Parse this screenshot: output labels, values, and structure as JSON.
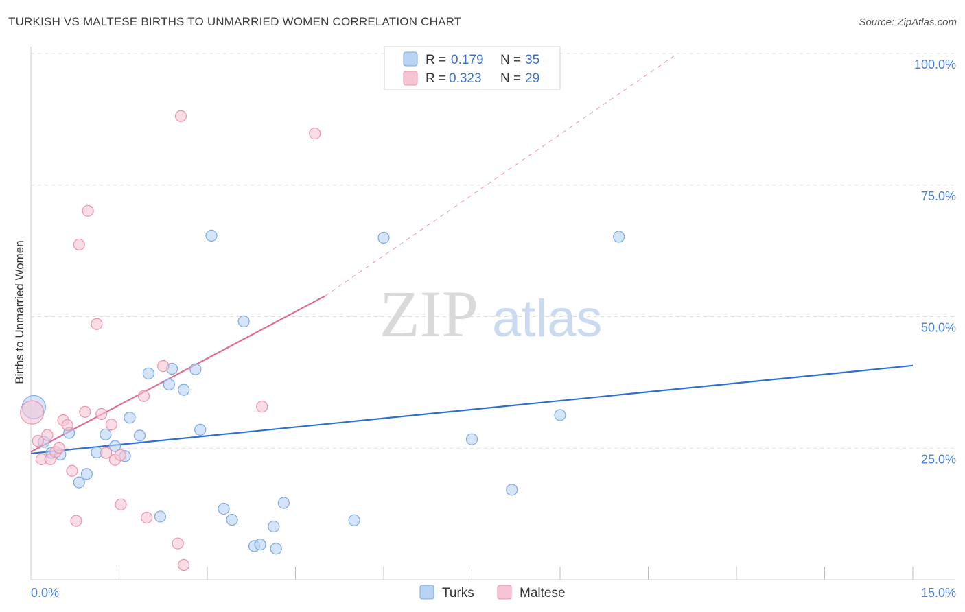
{
  "title": "TURKISH VS MALTESE BIRTHS TO UNMARRIED WOMEN CORRELATION CHART",
  "source": "Source: ZipAtlas.com",
  "watermark": {
    "zip": "ZIP",
    "atlas": "atlas"
  },
  "legend": {
    "r_label": "R =",
    "n_label": "N =",
    "rows": [
      {
        "r": "0.179",
        "n": "35"
      },
      {
        "r": "0.323",
        "n": "29"
      }
    ]
  },
  "colors": {
    "turks_fill": "#b9d3f5",
    "turks_stroke": "#7aa8e4",
    "turks_line": "#2a6fd1",
    "maltese_fill": "#f7c4d3",
    "maltese_stroke": "#ec92ad",
    "maltese_line": "#e06a95",
    "grid": "#dddddd",
    "axis_text": "#4a7fd4"
  },
  "chart_data": {
    "type": "scatter",
    "title": "TURKISH VS MALTESE BIRTHS TO UNMARRIED WOMEN CORRELATION CHART",
    "xlabel": "",
    "ylabel": "Births to Unmarried Women",
    "xlim": [
      0,
      15
    ],
    "ylim": [
      0,
      100
    ],
    "x_tick_labels": [
      "0.0%",
      "15.0%"
    ],
    "y_ticks": [
      25,
      50,
      75,
      100
    ],
    "y_tick_labels": [
      "25.0%",
      "50.0%",
      "75.0%",
      "100.0%"
    ],
    "grid": true,
    "legend_position": "top-center",
    "series": [
      {
        "name": "Turks",
        "r": 0.179,
        "n": 35,
        "trend": {
          "x0": 0,
          "y0": 24.0,
          "x1": 15,
          "y1": 40.7
        },
        "points": [
          {
            "x": 0.05,
            "y": 32.8,
            "big": true
          },
          {
            "x": 0.22,
            "y": 26.2
          },
          {
            "x": 0.35,
            "y": 24.1
          },
          {
            "x": 0.5,
            "y": 23.8
          },
          {
            "x": 0.65,
            "y": 27.9
          },
          {
            "x": 0.82,
            "y": 18.5
          },
          {
            "x": 0.95,
            "y": 20.1
          },
          {
            "x": 1.12,
            "y": 24.2
          },
          {
            "x": 1.27,
            "y": 27.6
          },
          {
            "x": 1.43,
            "y": 25.4
          },
          {
            "x": 1.6,
            "y": 23.5
          },
          {
            "x": 1.68,
            "y": 30.8
          },
          {
            "x": 1.85,
            "y": 27.4
          },
          {
            "x": 2.0,
            "y": 39.2
          },
          {
            "x": 2.2,
            "y": 12.0
          },
          {
            "x": 2.35,
            "y": 37.1
          },
          {
            "x": 2.4,
            "y": 40.1
          },
          {
            "x": 2.6,
            "y": 36.1
          },
          {
            "x": 2.8,
            "y": 40.0
          },
          {
            "x": 2.88,
            "y": 28.5
          },
          {
            "x": 3.07,
            "y": 65.4
          },
          {
            "x": 3.28,
            "y": 13.5
          },
          {
            "x": 3.42,
            "y": 11.4
          },
          {
            "x": 3.62,
            "y": 49.1
          },
          {
            "x": 3.8,
            "y": 6.4
          },
          {
            "x": 3.9,
            "y": 6.7
          },
          {
            "x": 4.13,
            "y": 10.1
          },
          {
            "x": 4.17,
            "y": 5.9
          },
          {
            "x": 4.3,
            "y": 14.6
          },
          {
            "x": 5.5,
            "y": 11.3
          },
          {
            "x": 6.0,
            "y": 65.0
          },
          {
            "x": 7.5,
            "y": 26.7
          },
          {
            "x": 8.18,
            "y": 17.1
          },
          {
            "x": 9.0,
            "y": 31.3
          },
          {
            "x": 10.0,
            "y": 65.2
          }
        ]
      },
      {
        "name": "Maltese",
        "r": 0.323,
        "n": 29,
        "trend": {
          "x0": 0,
          "y0": 24.3,
          "x1": 5.0,
          "y1": 53.9
        },
        "trend_extension": {
          "x0": 5.0,
          "y0": 53.9,
          "x1": 11.0,
          "y1": 100.0
        },
        "points": [
          {
            "x": 0.02,
            "y": 31.8,
            "big": true
          },
          {
            "x": 0.12,
            "y": 26.4
          },
          {
            "x": 0.18,
            "y": 22.9
          },
          {
            "x": 0.28,
            "y": 27.5
          },
          {
            "x": 0.33,
            "y": 22.9
          },
          {
            "x": 0.42,
            "y": 24.3
          },
          {
            "x": 0.48,
            "y": 25.1
          },
          {
            "x": 0.55,
            "y": 30.3
          },
          {
            "x": 0.62,
            "y": 29.4
          },
          {
            "x": 0.7,
            "y": 20.7
          },
          {
            "x": 0.77,
            "y": 11.2
          },
          {
            "x": 0.82,
            "y": 63.7
          },
          {
            "x": 0.92,
            "y": 31.9
          },
          {
            "x": 0.97,
            "y": 70.1
          },
          {
            "x": 1.12,
            "y": 48.6
          },
          {
            "x": 1.2,
            "y": 31.5
          },
          {
            "x": 1.28,
            "y": 24.1
          },
          {
            "x": 1.37,
            "y": 29.5
          },
          {
            "x": 1.43,
            "y": 22.8
          },
          {
            "x": 1.52,
            "y": 23.7
          },
          {
            "x": 1.53,
            "y": 14.3
          },
          {
            "x": 1.92,
            "y": 34.9
          },
          {
            "x": 1.97,
            "y": 11.8
          },
          {
            "x": 2.25,
            "y": 40.6
          },
          {
            "x": 2.5,
            "y": 6.9
          },
          {
            "x": 2.55,
            "y": 88.1
          },
          {
            "x": 2.6,
            "y": 2.8
          },
          {
            "x": 3.93,
            "y": 32.9
          },
          {
            "x": 4.83,
            "y": 84.8
          }
        ]
      }
    ]
  }
}
